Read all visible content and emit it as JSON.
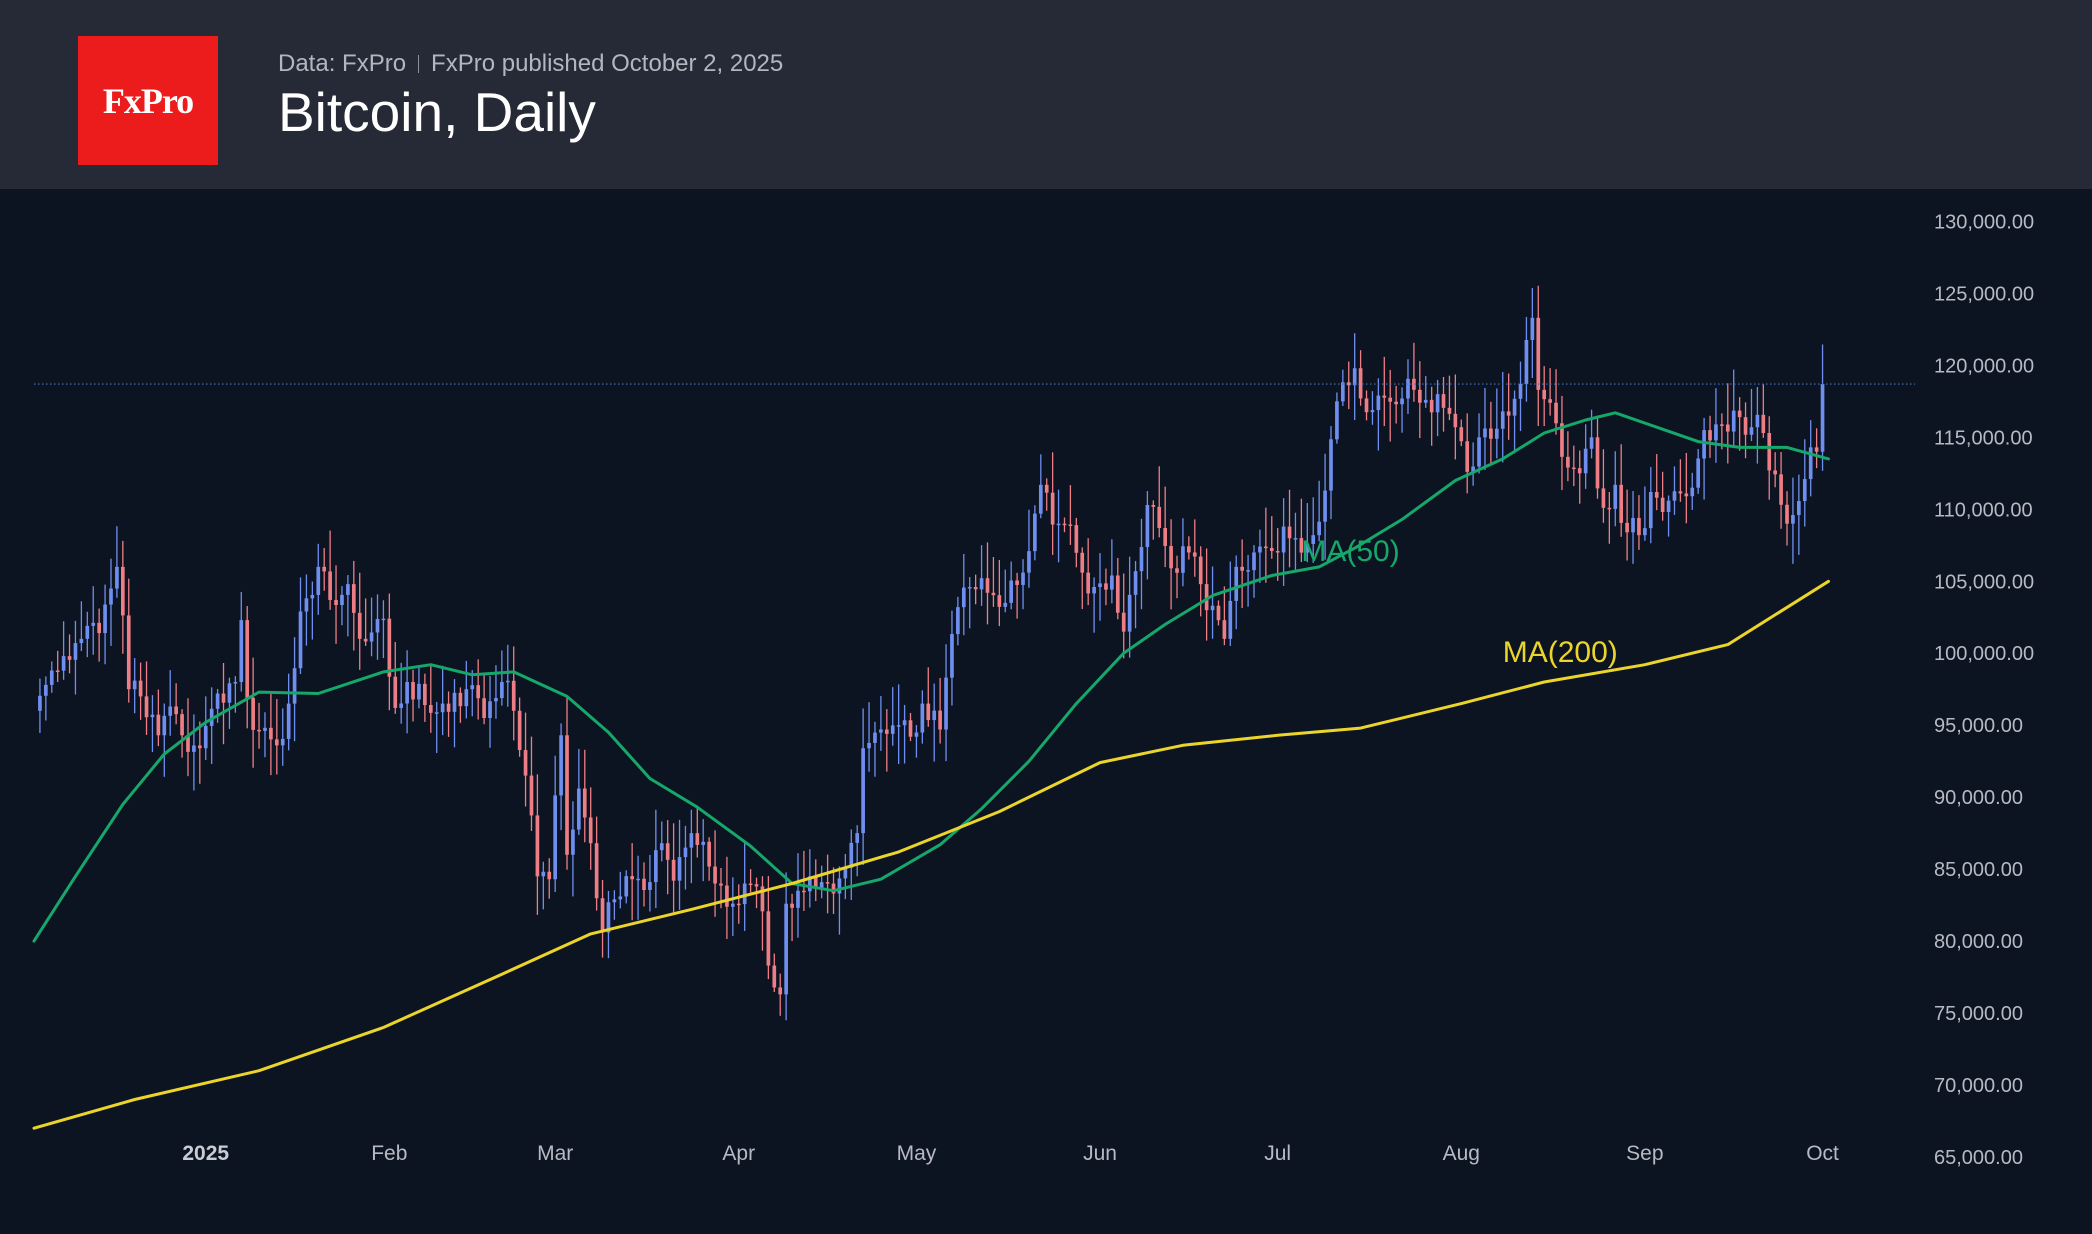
{
  "header": {
    "logo_text": "FxPro",
    "data_source": "Data: FxPro",
    "published": "FxPro published October 2, 2025",
    "title": "Bitcoin, Daily"
  },
  "colors": {
    "background": "#0d1421",
    "header_bg": "#262a36",
    "logo_bg": "#ec1c1c",
    "candle_up": "#6f8ff0",
    "candle_down": "#ee7e86",
    "ma50": "#16a86a",
    "ma200": "#ecd52b",
    "last_price_line": "#4a6fb8"
  },
  "chart_data": {
    "type": "candlestick",
    "title": "Bitcoin, Daily",
    "x_labels": [
      {
        "date": "2025-01-01",
        "label": "2025"
      },
      {
        "date": "2025-02-01",
        "label": "Feb"
      },
      {
        "date": "2025-03-01",
        "label": "Mar"
      },
      {
        "date": "2025-04-01",
        "label": "Apr"
      },
      {
        "date": "2025-05-01",
        "label": "May"
      },
      {
        "date": "2025-06-01",
        "label": "Jun"
      },
      {
        "date": "2025-07-01",
        "label": "Jul"
      },
      {
        "date": "2025-08-01",
        "label": "Aug"
      },
      {
        "date": "2025-09-01",
        "label": "Sep"
      },
      {
        "date": "2025-10-01",
        "label": "Oct"
      }
    ],
    "y_ticks": [
      "130,000.00",
      "125,000.00",
      "120,000.00",
      "115,000.00",
      "110,000.00",
      "105,000.00",
      "100,000.00",
      "95,000.00",
      "90,000.00",
      "85,000.00",
      "80,000.00",
      "75,000.00",
      "70,000.00",
      "65,000.00"
    ],
    "ylim": [
      60000,
      131000
    ],
    "xlim": [
      "2024-12-03",
      "2025-10-08"
    ],
    "last_price": 118700,
    "grid": false,
    "close_anchors": [
      [
        "2024-12-03",
        96000
      ],
      [
        "2024-12-05",
        97800
      ],
      [
        "2024-12-08",
        99800
      ],
      [
        "2024-12-11",
        101000
      ],
      [
        "2024-12-14",
        101400
      ],
      [
        "2024-12-17",
        106000
      ],
      [
        "2024-12-19",
        97500
      ],
      [
        "2024-12-21",
        97000
      ],
      [
        "2024-12-24",
        94300
      ],
      [
        "2024-12-26",
        96300
      ],
      [
        "2024-12-28",
        94300
      ],
      [
        "2024-12-31",
        93400
      ],
      [
        "2025-01-03",
        97200
      ],
      [
        "2025-01-06",
        98000
      ],
      [
        "2025-01-07",
        102300
      ],
      [
        "2025-01-08",
        96900
      ],
      [
        "2025-01-10",
        94600
      ],
      [
        "2025-01-13",
        93600
      ],
      [
        "2025-01-15",
        96500
      ],
      [
        "2025-01-17",
        102900
      ],
      [
        "2025-01-20",
        106000
      ],
      [
        "2025-01-22",
        103700
      ],
      [
        "2025-01-25",
        104800
      ],
      [
        "2025-01-27",
        101000
      ],
      [
        "2025-01-31",
        102400
      ],
      [
        "2025-02-02",
        96200
      ],
      [
        "2025-02-04",
        98000
      ],
      [
        "2025-02-07",
        96400
      ],
      [
        "2025-02-10",
        96500
      ],
      [
        "2025-02-14",
        97500
      ],
      [
        "2025-02-17",
        95500
      ],
      [
        "2025-02-20",
        98000
      ],
      [
        "2025-02-22",
        96000
      ],
      [
        "2025-02-24",
        91500
      ],
      [
        "2025-02-26",
        84500
      ],
      [
        "2025-02-28",
        84300
      ],
      [
        "2025-03-02",
        94300
      ],
      [
        "2025-03-03",
        86000
      ],
      [
        "2025-03-05",
        90600
      ],
      [
        "2025-03-07",
        86800
      ],
      [
        "2025-03-09",
        80600
      ],
      [
        "2025-03-11",
        82900
      ],
      [
        "2025-03-14",
        84300
      ],
      [
        "2025-03-17",
        84100
      ],
      [
        "2025-03-19",
        86800
      ],
      [
        "2025-03-21",
        84200
      ],
      [
        "2025-03-24",
        87500
      ],
      [
        "2025-03-26",
        86900
      ],
      [
        "2025-03-28",
        84000
      ],
      [
        "2025-03-31",
        82600
      ],
      [
        "2025-04-02",
        84000
      ],
      [
        "2025-04-04",
        83800
      ],
      [
        "2025-04-06",
        78300
      ],
      [
        "2025-04-08",
        76300
      ],
      [
        "2025-04-09",
        82600
      ],
      [
        "2025-04-11",
        83500
      ],
      [
        "2025-04-13",
        84500
      ],
      [
        "2025-04-16",
        84000
      ],
      [
        "2025-04-19",
        85100
      ],
      [
        "2025-04-21",
        87500
      ],
      [
        "2025-04-22",
        93400
      ],
      [
        "2025-04-25",
        94700
      ],
      [
        "2025-04-28",
        95000
      ],
      [
        "2025-04-30",
        94200
      ],
      [
        "2025-05-02",
        96500
      ],
      [
        "2025-05-05",
        94700
      ],
      [
        "2025-05-08",
        103200
      ],
      [
        "2025-05-10",
        104600
      ],
      [
        "2025-05-13",
        104200
      ],
      [
        "2025-05-16",
        103500
      ],
      [
        "2025-05-19",
        105600
      ],
      [
        "2025-05-21",
        109700
      ],
      [
        "2025-05-22",
        111700
      ],
      [
        "2025-05-25",
        109000
      ],
      [
        "2025-05-27",
        108900
      ],
      [
        "2025-05-29",
        105600
      ],
      [
        "2025-05-31",
        104600
      ],
      [
        "2025-06-03",
        105400
      ],
      [
        "2025-06-05",
        101500
      ],
      [
        "2025-06-07",
        105700
      ],
      [
        "2025-06-09",
        110300
      ],
      [
        "2025-06-11",
        108700
      ],
      [
        "2025-06-13",
        105900
      ],
      [
        "2025-06-16",
        107000
      ],
      [
        "2025-06-18",
        104800
      ],
      [
        "2025-06-20",
        103300
      ],
      [
        "2025-06-22",
        101000
      ],
      [
        "2025-06-24",
        106000
      ],
      [
        "2025-06-27",
        107000
      ],
      [
        "2025-06-30",
        107100
      ],
      [
        "2025-07-02",
        108800
      ],
      [
        "2025-07-04",
        108000
      ],
      [
        "2025-07-07",
        108200
      ],
      [
        "2025-07-09",
        111300
      ],
      [
        "2025-07-11",
        117500
      ],
      [
        "2025-07-14",
        119800
      ],
      [
        "2025-07-15",
        117700
      ],
      [
        "2025-07-18",
        117900
      ],
      [
        "2025-07-21",
        117300
      ],
      [
        "2025-07-24",
        118300
      ],
      [
        "2025-07-26",
        117600
      ],
      [
        "2025-07-28",
        118000
      ],
      [
        "2025-07-31",
        115700
      ],
      [
        "2025-08-02",
        112600
      ],
      [
        "2025-08-04",
        115000
      ],
      [
        "2025-08-06",
        114900
      ],
      [
        "2025-08-08",
        116800
      ],
      [
        "2025-08-11",
        118700
      ],
      [
        "2025-08-13",
        123300
      ],
      [
        "2025-08-14",
        118300
      ],
      [
        "2025-08-16",
        117400
      ],
      [
        "2025-08-19",
        112900
      ],
      [
        "2025-08-21",
        112500
      ],
      [
        "2025-08-23",
        115000
      ],
      [
        "2025-08-25",
        110100
      ],
      [
        "2025-08-27",
        111700
      ],
      [
        "2025-08-29",
        108400
      ],
      [
        "2025-08-31",
        108200
      ],
      [
        "2025-09-02",
        111200
      ],
      [
        "2025-09-05",
        110600
      ],
      [
        "2025-09-07",
        111100
      ],
      [
        "2025-09-09",
        111500
      ],
      [
        "2025-09-11",
        115500
      ],
      [
        "2025-09-13",
        115900
      ],
      [
        "2025-09-15",
        115400
      ],
      [
        "2025-09-17",
        116400
      ],
      [
        "2025-09-19",
        115700
      ],
      [
        "2025-09-21",
        115300
      ],
      [
        "2025-09-22",
        112700
      ],
      [
        "2025-09-25",
        109000
      ],
      [
        "2025-09-26",
        109600
      ],
      [
        "2025-09-28",
        112100
      ],
      [
        "2025-09-29",
        114300
      ],
      [
        "2025-09-30",
        114000
      ],
      [
        "2025-10-01",
        118700
      ]
    ],
    "series": [
      {
        "name": "MA(50)",
        "values": [
          [
            "2024-12-03",
            80000
          ],
          [
            "2024-12-10",
            84500
          ],
          [
            "2024-12-18",
            89500
          ],
          [
            "2024-12-25",
            93000
          ],
          [
            "2025-01-01",
            95200
          ],
          [
            "2025-01-10",
            97300
          ],
          [
            "2025-01-20",
            97200
          ],
          [
            "2025-01-31",
            98700
          ],
          [
            "2025-02-08",
            99200
          ],
          [
            "2025-02-15",
            98500
          ],
          [
            "2025-02-22",
            98700
          ],
          [
            "2025-03-03",
            97000
          ],
          [
            "2025-03-10",
            94500
          ],
          [
            "2025-03-17",
            91300
          ],
          [
            "2025-03-25",
            89300
          ],
          [
            "2025-04-03",
            86600
          ],
          [
            "2025-04-10",
            84000
          ],
          [
            "2025-04-17",
            83500
          ],
          [
            "2025-04-25",
            84300
          ],
          [
            "2025-05-05",
            86700
          ],
          [
            "2025-05-12",
            89200
          ],
          [
            "2025-05-20",
            92500
          ],
          [
            "2025-05-28",
            96500
          ],
          [
            "2025-06-05",
            100000
          ],
          [
            "2025-06-12",
            102000
          ],
          [
            "2025-06-20",
            104000
          ],
          [
            "2025-06-30",
            105400
          ],
          [
            "2025-07-08",
            106000
          ],
          [
            "2025-07-14",
            107300
          ],
          [
            "2025-07-22",
            109300
          ],
          [
            "2025-07-31",
            112000
          ],
          [
            "2025-08-08",
            113500
          ],
          [
            "2025-08-15",
            115300
          ],
          [
            "2025-08-22",
            116200
          ],
          [
            "2025-08-27",
            116700
          ],
          [
            "2025-09-03",
            115700
          ],
          [
            "2025-09-10",
            114700
          ],
          [
            "2025-09-17",
            114300
          ],
          [
            "2025-09-25",
            114300
          ],
          [
            "2025-10-02",
            113500
          ]
        ]
      },
      {
        "name": "MA(200)",
        "values": [
          [
            "2024-12-03",
            67000
          ],
          [
            "2024-12-20",
            69000
          ],
          [
            "2025-01-10",
            71000
          ],
          [
            "2025-01-31",
            74000
          ],
          [
            "2025-02-20",
            77700
          ],
          [
            "2025-03-07",
            80500
          ],
          [
            "2025-03-24",
            82200
          ],
          [
            "2025-04-10",
            84000
          ],
          [
            "2025-04-28",
            86200
          ],
          [
            "2025-05-15",
            89000
          ],
          [
            "2025-06-01",
            92400
          ],
          [
            "2025-06-15",
            93600
          ],
          [
            "2025-07-01",
            94300
          ],
          [
            "2025-07-15",
            94800
          ],
          [
            "2025-08-01",
            96500
          ],
          [
            "2025-08-15",
            98000
          ],
          [
            "2025-09-01",
            99200
          ],
          [
            "2025-09-15",
            100600
          ],
          [
            "2025-10-02",
            105000
          ]
        ]
      }
    ],
    "annotations": [
      {
        "text": "MA(50)",
        "series": "MA(50)"
      },
      {
        "text": "MA(200)",
        "series": "MA(200)"
      }
    ]
  }
}
